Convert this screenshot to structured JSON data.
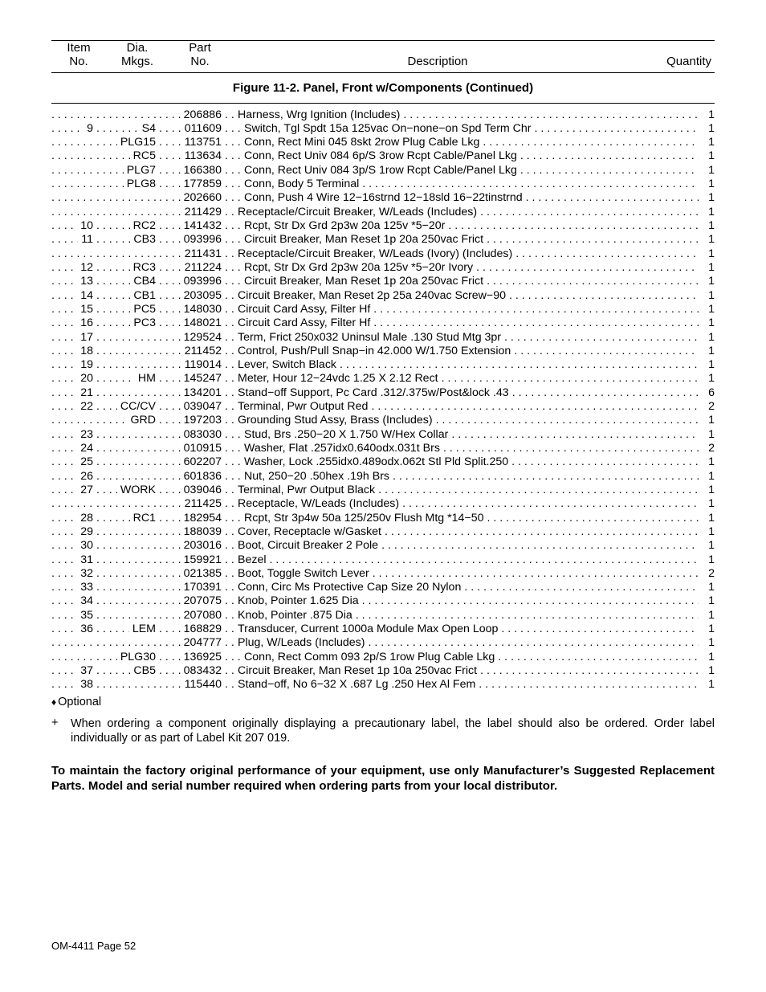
{
  "header": {
    "col_item_l1": "Item",
    "col_item_l2": "No.",
    "col_dia_l1": "Dia.",
    "col_dia_l2": "Mkgs.",
    "col_part_l1": "Part",
    "col_part_l2": "No.",
    "col_desc": "Description",
    "col_qty": "Quantity"
  },
  "figure_title": "Figure 11-2. Panel,  Front w/Components (Continued)",
  "rows": [
    {
      "item": "",
      "dia": "",
      "part": "206886",
      "desc": "Harness, Wrg Ignition (Includes)",
      "qty": "1",
      "indent": 0
    },
    {
      "item": "9",
      "dia": "S4",
      "part": "011609",
      "desc": "Switch, Tgl Spdt 15a 125vac On−none−on Spd Term Chr",
      "qty": "1",
      "indent": 1
    },
    {
      "item": "",
      "dia": "PLG15",
      "part": "113751",
      "desc": "Conn, Rect Mini 045 8skt 2row Plug Cable Lkg",
      "qty": "1",
      "indent": 1
    },
    {
      "item": "",
      "dia": "RC5",
      "part": "113634",
      "desc": "Conn, Rect Univ 084 6p/S 3row Rcpt Cable/Panel Lkg",
      "qty": "1",
      "indent": 1
    },
    {
      "item": "",
      "dia": "PLG7",
      "part": "166380",
      "desc": "Conn, Rect Univ 084 3p/S 1row Rcpt Cable/Panel Lkg",
      "qty": "1",
      "indent": 1
    },
    {
      "item": "",
      "dia": "PLG8",
      "part": "177859",
      "desc": "Conn, Body 5 Terminal",
      "qty": "1",
      "indent": 1
    },
    {
      "item": "",
      "dia": "",
      "part": "202660",
      "desc": "Conn, Push 4 Wire 12−16strnd 12−18sld 16−22tinstrnd",
      "qty": "1",
      "indent": 1
    },
    {
      "item": "",
      "dia": "",
      "part": "211429",
      "desc": "Receptacle/Circuit Breaker, W/Leads (Includes)",
      "qty": "1",
      "indent": 0
    },
    {
      "item": "10",
      "dia": "RC2",
      "part": "141432",
      "desc": "Rcpt, Str Dx Grd 2p3w 20a 125v *5−20r",
      "qty": "1",
      "indent": 1
    },
    {
      "item": "11",
      "dia": "CB3",
      "part": "093996",
      "desc": "Circuit Breaker, Man Reset 1p 20a 250vac Frict",
      "qty": "1",
      "indent": 1
    },
    {
      "item": "",
      "dia": "",
      "part": "211431",
      "desc": "Receptacle/Circuit Breaker, W/Leads (Ivory) (Includes)",
      "qty": "1",
      "indent": 0
    },
    {
      "item": "12",
      "dia": "RC3",
      "part": "211224",
      "desc": "Rcpt, Str Dx Grd 2p3w 20a 125v *5−20r Ivory",
      "qty": "1",
      "indent": 1
    },
    {
      "item": "13",
      "dia": "CB4",
      "part": "093996",
      "desc": "Circuit Breaker, Man Reset 1p 20a 250vac Frict",
      "qty": "1",
      "indent": 1
    },
    {
      "item": "14",
      "dia": "CB1",
      "part": "203095",
      "desc": "Circuit Breaker, Man Reset 2p 25a 240vac Screw−90",
      "qty": "1",
      "indent": 0
    },
    {
      "item": "15",
      "dia": "PC5",
      "part": "148030",
      "desc": "Circuit Card Assy, Filter Hf",
      "qty": "1",
      "indent": 0
    },
    {
      "item": "16",
      "dia": "PC3",
      "part": "148021",
      "desc": "Circuit Card Assy, Filter Hf",
      "qty": "1",
      "indent": 0
    },
    {
      "item": "17",
      "dia": "",
      "part": "129524",
      "desc": "Term, Frict 250x032 Uninsul Male .130 Stud Mtg 3pr",
      "qty": "1",
      "indent": 0
    },
    {
      "item": "18",
      "dia": "",
      "part": "211452",
      "desc": "Control, Push/Pull Snap−in 42.000 W/1.750 Extension",
      "qty": "1",
      "indent": 0
    },
    {
      "item": "19",
      "dia": "",
      "part": "119014",
      "desc": "Lever, Switch Black",
      "qty": "1",
      "indent": 0
    },
    {
      "item": "20",
      "dia": "HM",
      "part": "145247",
      "desc": "Meter, Hour 12−24vdc 1.25 X 2.12 Rect",
      "qty": "1",
      "indent": 0
    },
    {
      "item": "21",
      "dia": "",
      "part": "134201",
      "desc": "Stand−off Support, Pc Card .312/.375w/Post&lock .43",
      "qty": "6",
      "indent": 0
    },
    {
      "item": "22",
      "dia": "CC/CV",
      "part": "039047",
      "desc": "Terminal, Pwr Output Red",
      "qty": "2",
      "indent": 0
    },
    {
      "item": "",
      "dia": "GRD",
      "part": "197203",
      "desc": "Grounding Stud Assy, Brass (Includes)",
      "qty": "1",
      "indent": 0
    },
    {
      "item": "23",
      "dia": "",
      "part": "083030",
      "desc": "Stud, Brs .250−20 X 1.750 W/Hex Collar",
      "qty": "1",
      "indent": 1
    },
    {
      "item": "24",
      "dia": "",
      "part": "010915",
      "desc": "Washer, Flat .257idx0.640odx.031t Brs",
      "qty": "2",
      "indent": 1
    },
    {
      "item": "25",
      "dia": "",
      "part": "602207",
      "desc": "Washer, Lock .255idx0.489odx.062t Stl Pld Split.250",
      "qty": "1",
      "indent": 1
    },
    {
      "item": "26",
      "dia": "",
      "part": "601836",
      "desc": "Nut,  250−20 .50hex .19h Brs",
      "qty": "1",
      "indent": 1
    },
    {
      "item": "27",
      "dia": "WORK",
      "part": "039046",
      "desc": "Terminal, Pwr Output Black",
      "qty": "1",
      "indent": 0
    },
    {
      "item": "",
      "dia": "",
      "part": "211425",
      "desc": "Receptacle, W/Leads (Includes)",
      "qty": "1",
      "indent": 0
    },
    {
      "item": "28",
      "dia": "RC1",
      "part": "182954",
      "desc": "Rcpt, Str 3p4w 50a 125/250v Flush Mtg *14−50",
      "qty": "1",
      "indent": 1
    },
    {
      "item": "29",
      "dia": "",
      "part": "188039",
      "desc": "Cover, Receptacle w/Gasket",
      "qty": "1",
      "indent": 0
    },
    {
      "item": "30",
      "dia": "",
      "part": "203016",
      "desc": "Boot, Circuit Breaker 2 Pole",
      "qty": "1",
      "indent": 0
    },
    {
      "item": "31",
      "dia": "",
      "part": "159921",
      "desc": "Bezel",
      "qty": "1",
      "indent": 0
    },
    {
      "item": "32",
      "dia": "",
      "part": "021385",
      "desc": "Boot, Toggle Switch Lever",
      "qty": "2",
      "indent": 0
    },
    {
      "item": "33",
      "dia": "",
      "part": "170391",
      "desc": "Conn, Circ Ms Protective Cap Size 20 Nylon",
      "qty": "1",
      "indent": 0
    },
    {
      "item": "34",
      "dia": "",
      "part": "207075",
      "desc": "Knob, Pointer 1.625 Dia",
      "qty": "1",
      "indent": 0
    },
    {
      "item": "35",
      "dia": "",
      "part": "207080",
      "desc": "Knob, Pointer .875 Dia",
      "qty": "1",
      "indent": 0
    },
    {
      "item": "36",
      "dia": "LEM",
      "part": "168829",
      "desc": "Transducer, Current 1000a Module Max Open Loop",
      "qty": "1",
      "indent": 0
    },
    {
      "item": "",
      "dia": "",
      "part": "204777",
      "desc": "Plug, W/Leads (Includes)",
      "qty": "1",
      "indent": 0
    },
    {
      "item": "",
      "dia": "PLG30",
      "part": "136925",
      "desc": "Conn, Rect Comm 093 2p/S 1row Plug Cable Lkg",
      "qty": "1",
      "indent": 1
    },
    {
      "item": "37",
      "dia": "CB5",
      "part": "083432",
      "desc": "Circuit Breaker, Man Reset 1p 10a 250vac Frict",
      "qty": "1",
      "indent": 0
    },
    {
      "item": "38",
      "dia": "",
      "part": "115440",
      "desc": "Stand−off, No 6−32 X .687 Lg .250 Hex Al Fem",
      "qty": "1",
      "indent": 0
    }
  ],
  "optional_label": "Optional",
  "plus_note": "When ordering a component originally displaying a precautionary label,   the label should also be ordered. Order label individually or as part of Label Kit 207 019.",
  "bold_note": "To maintain the factory original performance of your equipment,   use only Manufacturer’s Suggested Replacement Parts. Model and serial number required when ordering parts from your local distributor.",
  "footer": "OM-4411 Page 52"
}
